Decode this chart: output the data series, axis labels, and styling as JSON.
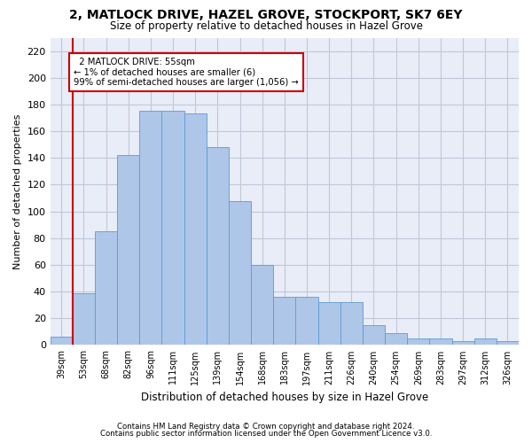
{
  "title": "2, MATLOCK DRIVE, HAZEL GROVE, STOCKPORT, SK7 6EY",
  "subtitle": "Size of property relative to detached houses in Hazel Grove",
  "xlabel": "Distribution of detached houses by size in Hazel Grove",
  "ylabel": "Number of detached properties",
  "footnote1": "Contains HM Land Registry data © Crown copyright and database right 2024.",
  "footnote2": "Contains public sector information licensed under the Open Government Licence v3.0.",
  "bar_labels": [
    "39sqm",
    "53sqm",
    "68sqm",
    "82sqm",
    "96sqm",
    "111sqm",
    "125sqm",
    "139sqm",
    "154sqm",
    "168sqm",
    "183sqm",
    "197sqm",
    "211sqm",
    "226sqm",
    "240sqm",
    "254sqm",
    "269sqm",
    "283sqm",
    "297sqm",
    "312sqm",
    "326sqm"
  ],
  "bar_values": [
    6,
    39,
    85,
    142,
    175,
    175,
    173,
    148,
    108,
    60,
    36,
    36,
    32,
    32,
    15,
    9,
    5,
    5,
    3,
    5,
    3
  ],
  "bar_color": "#aec6e8",
  "bar_edge_color": "#5b9bd5",
  "annotation_text": "  2 MATLOCK DRIVE: 55sqm\n← 1% of detached houses are smaller (6)\n99% of semi-detached houses are larger (1,056) →",
  "vline_color": "#cc0000",
  "annotation_box_edge_color": "#cc0000",
  "background_color": "#e8edf8",
  "grid_color": "#c0c8d8",
  "ylim": [
    0,
    230
  ],
  "yticks": [
    0,
    20,
    40,
    60,
    80,
    100,
    120,
    140,
    160,
    180,
    200,
    220
  ]
}
